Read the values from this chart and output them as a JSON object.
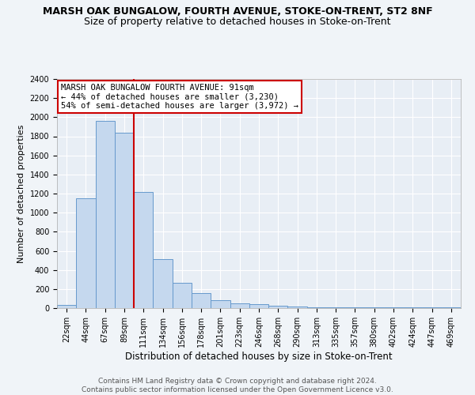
{
  "title": "MARSH OAK BUNGALOW, FOURTH AVENUE, STOKE-ON-TRENT, ST2 8NF",
  "subtitle": "Size of property relative to detached houses in Stoke-on-Trent",
  "xlabel": "Distribution of detached houses by size in Stoke-on-Trent",
  "ylabel": "Number of detached properties",
  "categories": [
    "22sqm",
    "44sqm",
    "67sqm",
    "89sqm",
    "111sqm",
    "134sqm",
    "156sqm",
    "178sqm",
    "201sqm",
    "223sqm",
    "246sqm",
    "268sqm",
    "290sqm",
    "313sqm",
    "335sqm",
    "357sqm",
    "380sqm",
    "402sqm",
    "424sqm",
    "447sqm",
    "469sqm"
  ],
  "values": [
    30,
    1150,
    1960,
    1840,
    1215,
    515,
    265,
    155,
    80,
    50,
    45,
    25,
    20,
    12,
    8,
    12,
    5,
    5,
    5,
    5,
    5
  ],
  "bar_color": "#c5d8ee",
  "bar_edge_color": "#6699cc",
  "vline_color": "#cc0000",
  "annotation_text": "MARSH OAK BUNGALOW FOURTH AVENUE: 91sqm\n← 44% of detached houses are smaller (3,230)\n54% of semi-detached houses are larger (3,972) →",
  "annotation_box_color": "#ffffff",
  "annotation_box_edge": "#cc0000",
  "ylim": [
    0,
    2400
  ],
  "yticks": [
    0,
    200,
    400,
    600,
    800,
    1000,
    1200,
    1400,
    1600,
    1800,
    2000,
    2200,
    2400
  ],
  "bg_color": "#f0f4f8",
  "plot_bg_color": "#e8eef5",
  "footnote": "Contains HM Land Registry data © Crown copyright and database right 2024.\nContains public sector information licensed under the Open Government Licence v3.0.",
  "title_fontsize": 9,
  "subtitle_fontsize": 9,
  "xlabel_fontsize": 8.5,
  "ylabel_fontsize": 8,
  "tick_fontsize": 7,
  "annotation_fontsize": 7.5,
  "footnote_fontsize": 6.5
}
